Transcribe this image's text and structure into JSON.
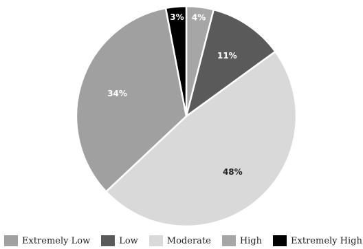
{
  "chart_data": {
    "type": "pie",
    "title": "",
    "start_angle_deg": 0,
    "direction": "clockwise",
    "slices": [
      {
        "label": "High",
        "value": 4,
        "value_label": "4%",
        "color": "#a6a6a6",
        "label_color": "#ffffff"
      },
      {
        "label": "Low",
        "value": 11,
        "value_label": "11%",
        "color": "#5a5a5a",
        "label_color": "#ffffff"
      },
      {
        "label": "Moderate",
        "value": 48,
        "value_label": "48%",
        "color": "#d9d9d9",
        "label_color": "#222222"
      },
      {
        "label": "Extremely Low",
        "value": 34,
        "value_label": "34%",
        "color": "#a0a0a0",
        "label_color": "#ffffff"
      },
      {
        "label": "Extremely High",
        "value": 3,
        "value_label": "3%",
        "color": "#000000",
        "label_color": "#ffffff"
      }
    ],
    "legend": {
      "position": "bottom",
      "items": [
        {
          "label": "Extremely Low",
          "color": "#a0a0a0"
        },
        {
          "label": "Low",
          "color": "#5a5a5a"
        },
        {
          "label": "Moderate",
          "color": "#d9d9d9"
        },
        {
          "label": "High",
          "color": "#a6a6a6"
        },
        {
          "label": "Extremely High",
          "color": "#000000"
        }
      ]
    }
  }
}
